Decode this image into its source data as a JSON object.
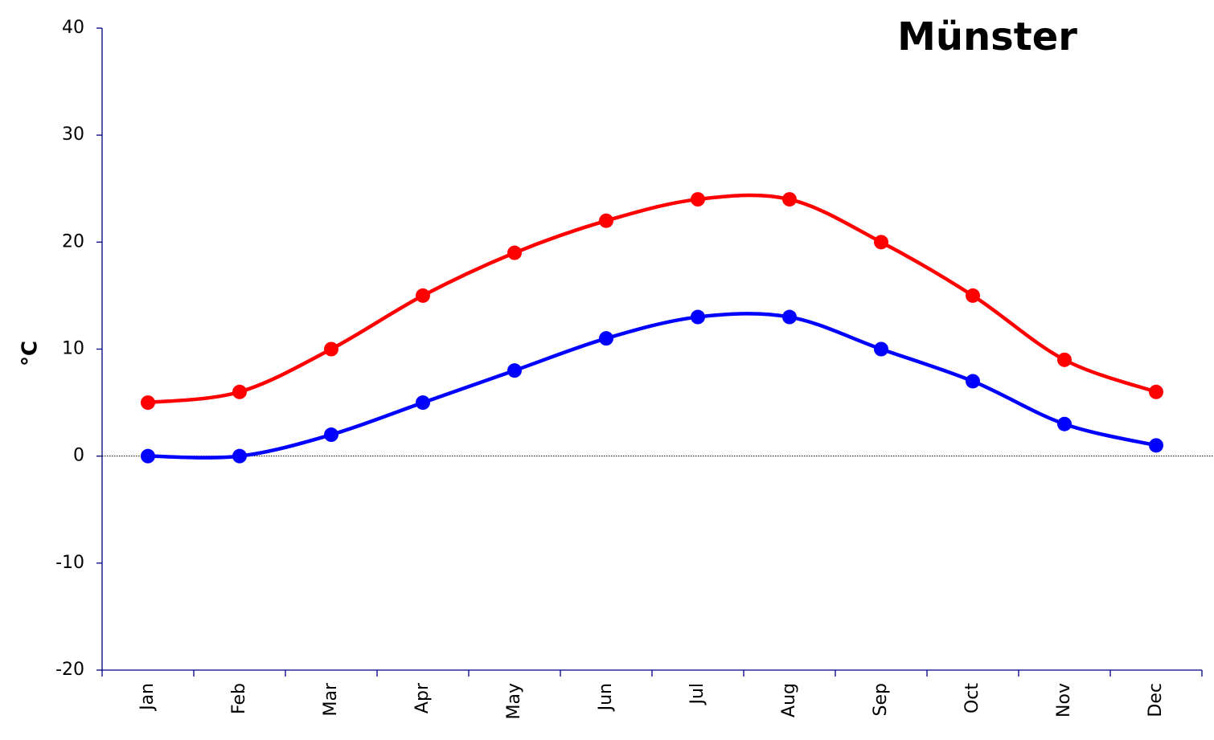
{
  "chart_data": {
    "type": "line",
    "title": "Münster",
    "y_label": "°C",
    "categories": [
      "Jan",
      "Feb",
      "Mar",
      "Apr",
      "May",
      "Jun",
      "Jul",
      "Aug",
      "Sep",
      "Oct",
      "Nov",
      "Dec"
    ],
    "series": [
      {
        "color": "#ff0000",
        "values": [
          5,
          6,
          10,
          15,
          19,
          22,
          24,
          24,
          20,
          15,
          9,
          6
        ]
      },
      {
        "color": "#0000ff",
        "values": [
          0,
          0,
          2,
          5,
          8,
          11,
          13,
          13,
          10,
          7,
          3,
          1
        ]
      }
    ],
    "ylim": [
      -20,
      40
    ],
    "yticks": [
      -20,
      -10,
      0,
      10,
      20,
      30,
      40
    ],
    "smooth": true,
    "zero_line": true,
    "grid": false
  }
}
